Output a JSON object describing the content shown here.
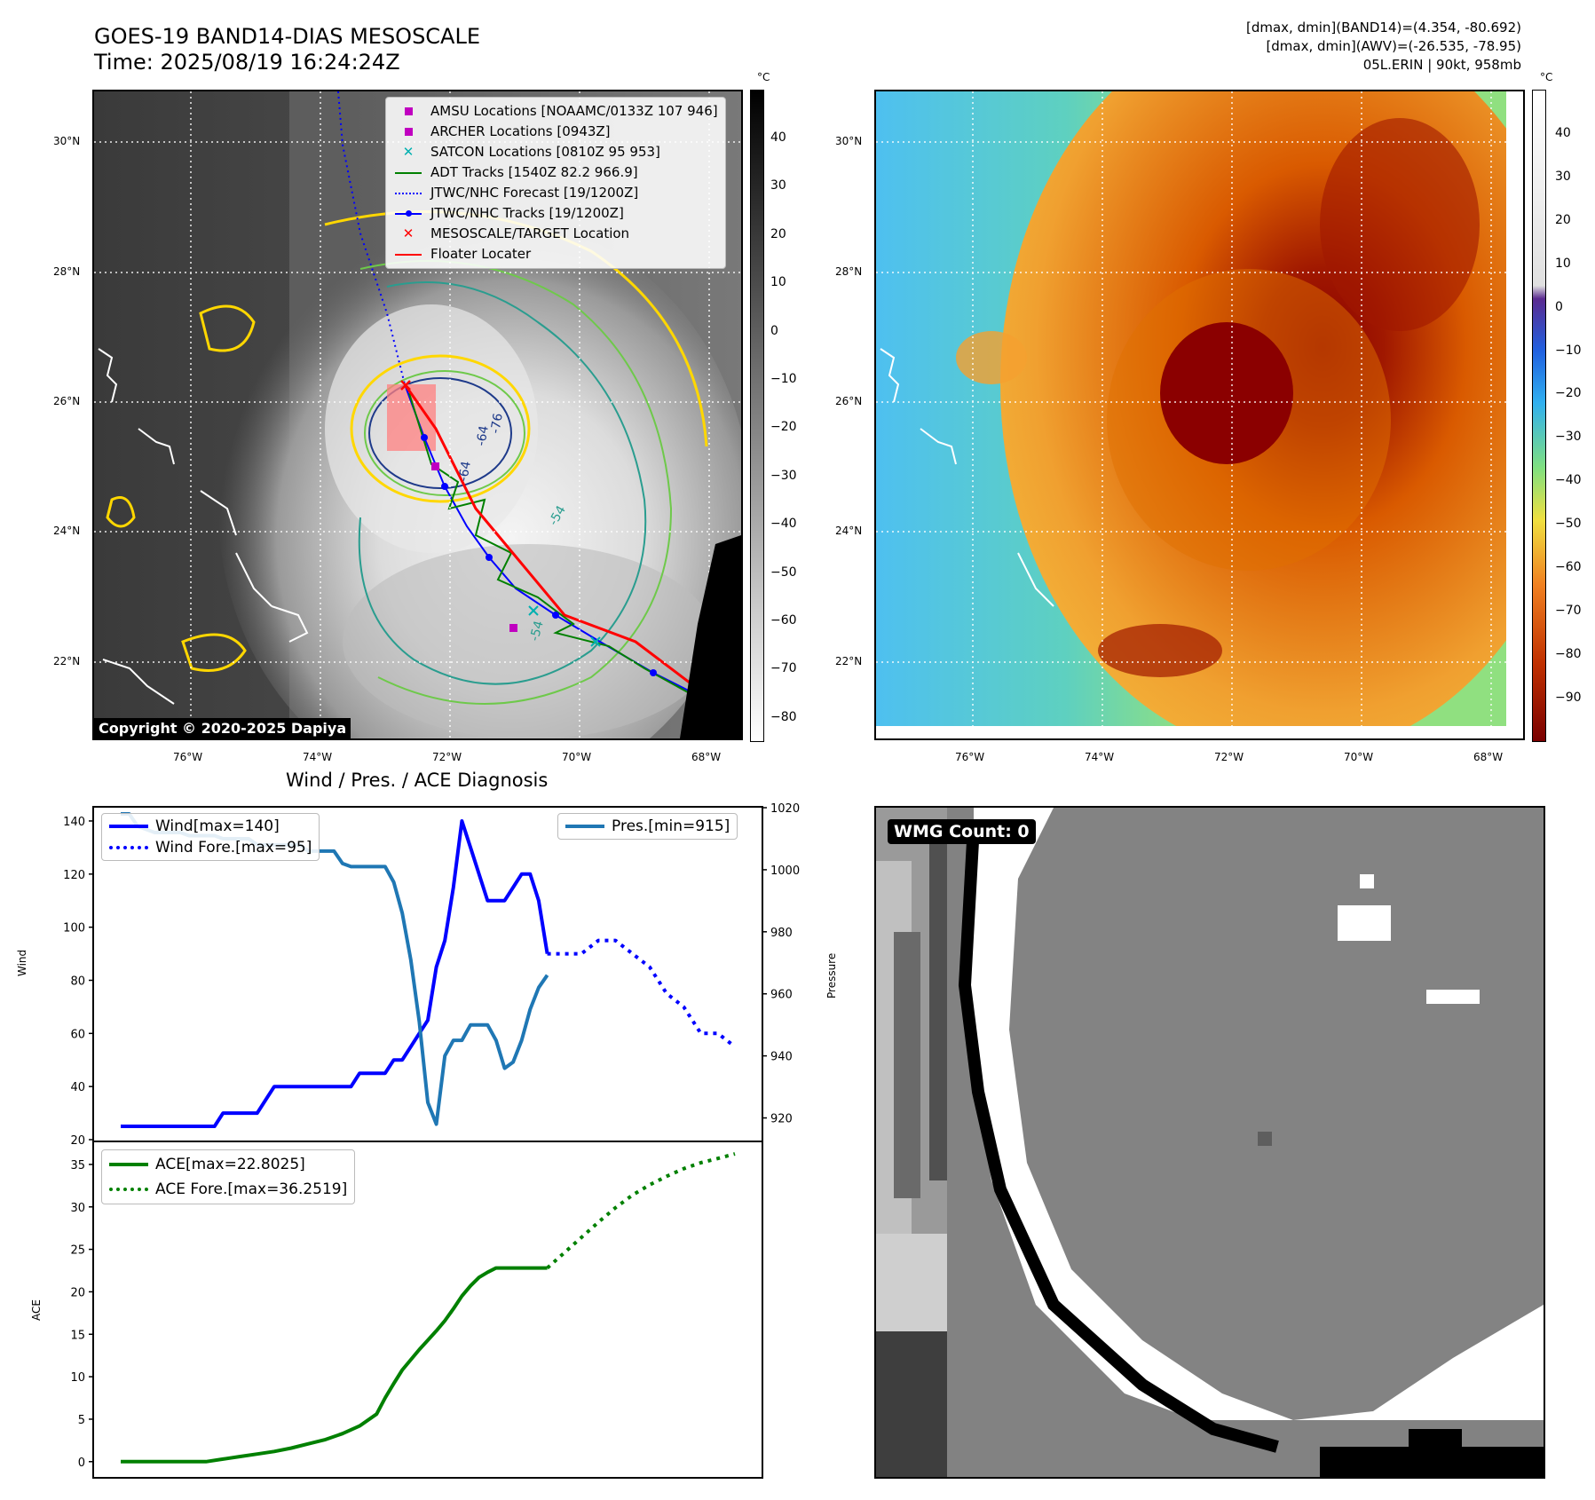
{
  "header": {
    "title_line1": "GOES-19 BAND14-DIAS MESOSCALE",
    "title_line2": "Time: 2025/08/19 16:24:24Z",
    "info_line1": "[dmax, dmin](BAND14)=(4.354, -80.692)",
    "info_line2": "[dmax, dmin](AWV)=(-26.535, -78.95)",
    "info_line3": "05L.ERIN | 90kt, 958mb"
  },
  "map_axes": {
    "lon_labels": [
      "76°W",
      "74°W",
      "72°W",
      "70°W",
      "68°W"
    ],
    "lat_labels": [
      "30°N",
      "28°N",
      "26°N",
      "24°N",
      "22°N"
    ]
  },
  "ir_panel": {
    "colorbar_unit": "°C",
    "colorbar_ticks": [
      "40",
      "30",
      "20",
      "10",
      "0",
      "−10",
      "−20",
      "−30",
      "−40",
      "−50",
      "−60",
      "−70",
      "−80"
    ],
    "copyright": "Copyright © 2020-2025 Dapiya",
    "legend": [
      {
        "label": "AMSU Locations [NOAAMC/0133Z 107 946]",
        "icon": "square-marker",
        "color": "#c000c0"
      },
      {
        "label": "ARCHER Locations [0943Z]",
        "icon": "square-marker",
        "color": "#c000c0"
      },
      {
        "label": "SATCON Locations [0810Z 95 953]",
        "icon": "x-marker",
        "color": "#00c0c0"
      },
      {
        "label": "ADT Tracks [1540Z 82.2 966.9]",
        "icon": "solid-line",
        "color": "#008000"
      },
      {
        "label": "JTWC/NHC Forecast [19/1200Z]",
        "icon": "dotted-line",
        "color": "#0000ff"
      },
      {
        "label": "JTWC/NHC Tracks [19/1200Z]",
        "icon": "line-dot",
        "color": "#0000ff"
      },
      {
        "label": "MESOSCALE/TARGET Location",
        "icon": "x-marker",
        "color": "#ff0000"
      },
      {
        "label": "Floater Locater",
        "icon": "solid-line",
        "color": "#ff0000"
      }
    ],
    "contour_labels": [
      "-64",
      "-54",
      "-54",
      "-64",
      "-76"
    ]
  },
  "awv_panel": {
    "colorbar_unit": "°C",
    "colorbar_ticks": [
      "40",
      "30",
      "20",
      "10",
      "0",
      "−10",
      "−20",
      "−30",
      "−40",
      "−50",
      "−60",
      "−70",
      "−80",
      "−90"
    ]
  },
  "wmg_panel": {
    "count_label": "WMG Count: 0"
  },
  "colors": {
    "wind": "#0000ff",
    "pressure": "#1f77b4",
    "ace": "#008000",
    "track_red": "#ff0000"
  },
  "chart_data": [
    {
      "type": "line",
      "title": "Wind / Pres. / ACE Diagnosis",
      "ylabel": "Wind",
      "y2label": "Pressure",
      "ylim": [
        20,
        145
      ],
      "y2lim": [
        913,
        1020
      ],
      "yticks": [
        "140",
        "120",
        "100",
        "80",
        "60",
        "40",
        "20"
      ],
      "y2ticks": [
        "1020",
        "1000",
        "980",
        "960",
        "940",
        "920"
      ],
      "xlim": [
        0,
        72
      ],
      "series": [
        {
          "name": "Wind[max=140]",
          "axis": "left",
          "style": "solid",
          "color": "#0000ff",
          "x": [
            0,
            2,
            4,
            6,
            8,
            10,
            11,
            12,
            13,
            14,
            15,
            16,
            17,
            18,
            19,
            20,
            21,
            22,
            23,
            24,
            25,
            26,
            27,
            28,
            29,
            30,
            31,
            32,
            33,
            34,
            35,
            36,
            37,
            38,
            39,
            40,
            41,
            42,
            43,
            44,
            45,
            46,
            47,
            48,
            49,
            50
          ],
          "values": [
            25,
            25,
            25,
            25,
            25,
            25,
            25,
            30,
            30,
            30,
            30,
            30,
            35,
            40,
            40,
            40,
            40,
            40,
            40,
            40,
            40,
            40,
            40,
            45,
            45,
            45,
            45,
            50,
            50,
            55,
            60,
            65,
            85,
            95,
            115,
            140,
            130,
            120,
            110,
            110,
            110,
            115,
            120,
            120,
            110,
            90
          ]
        },
        {
          "name": "Wind Fore.[max=95]",
          "axis": "left",
          "style": "dotted",
          "color": "#0000ff",
          "x": [
            50,
            52,
            54,
            56,
            58,
            60,
            62,
            64,
            66,
            68,
            70,
            72
          ],
          "values": [
            90,
            90,
            90,
            95,
            95,
            90,
            85,
            75,
            70,
            60,
            60,
            55
          ]
        },
        {
          "name": "Pres.[min=915]",
          "axis": "right",
          "style": "solid",
          "color": "#1f77b4",
          "x": [
            0,
            1,
            2,
            3,
            4,
            5,
            6,
            7,
            8,
            9,
            10,
            11,
            12,
            13,
            14,
            15,
            16,
            17,
            18,
            19,
            20,
            21,
            22,
            23,
            24,
            25,
            26,
            27,
            28,
            29,
            30,
            31,
            32,
            33,
            34,
            35,
            36,
            37,
            38,
            39,
            40,
            41,
            42,
            43,
            44,
            45,
            46,
            47,
            48,
            49,
            50
          ],
          "values": [
            1018,
            1018,
            1014,
            1013,
            1012,
            1012,
            1012,
            1012,
            1011,
            1011,
            1011,
            1011,
            1010,
            1010,
            1010,
            1010,
            1008,
            1008,
            1008,
            1008,
            1008,
            1008,
            1006,
            1006,
            1006,
            1006,
            1002,
            1001,
            1001,
            1001,
            1001,
            1001,
            996,
            986,
            971,
            951,
            925,
            918,
            940,
            945,
            945,
            950,
            950,
            950,
            945,
            936,
            938,
            945,
            955,
            962,
            966
          ]
        },
        {
          "name": "ACE[max=22.8025]",
          "axis": "ace",
          "style": "solid",
          "color": "#008000",
          "x": [
            0,
            2,
            4,
            6,
            8,
            10,
            12,
            14,
            16,
            18,
            20,
            22,
            24,
            26,
            28,
            30,
            31,
            32,
            33,
            34,
            35,
            36,
            37,
            38,
            39,
            40,
            41,
            42,
            43,
            44,
            45,
            46,
            47,
            48,
            49,
            50
          ],
          "values": [
            0,
            0,
            0,
            0,
            0,
            0,
            0.3,
            0.6,
            0.9,
            1.2,
            1.6,
            2.1,
            2.6,
            3.3,
            4.2,
            5.6,
            7.5,
            9.2,
            10.8,
            12.0,
            13.2,
            14.3,
            15.4,
            16.6,
            18.0,
            19.5,
            20.7,
            21.7,
            22.3,
            22.8,
            22.8,
            22.8,
            22.8,
            22.8,
            22.8,
            22.8
          ]
        },
        {
          "name": "ACE Fore.[max=36.2519]",
          "axis": "ace",
          "style": "dotted",
          "color": "#008000",
          "x": [
            50,
            52,
            54,
            56,
            58,
            60,
            62,
            64,
            66,
            68,
            70,
            72
          ],
          "values": [
            22.8,
            24.6,
            26.4,
            28.2,
            29.9,
            31.4,
            32.6,
            33.6,
            34.5,
            35.2,
            35.7,
            36.25
          ]
        }
      ],
      "ace_ylabel": "ACE",
      "ace_ylim": [
        -1.8,
        37.5
      ],
      "ace_yticks": [
        "35",
        "30",
        "25",
        "20",
        "15",
        "10",
        "5",
        "0"
      ]
    }
  ]
}
